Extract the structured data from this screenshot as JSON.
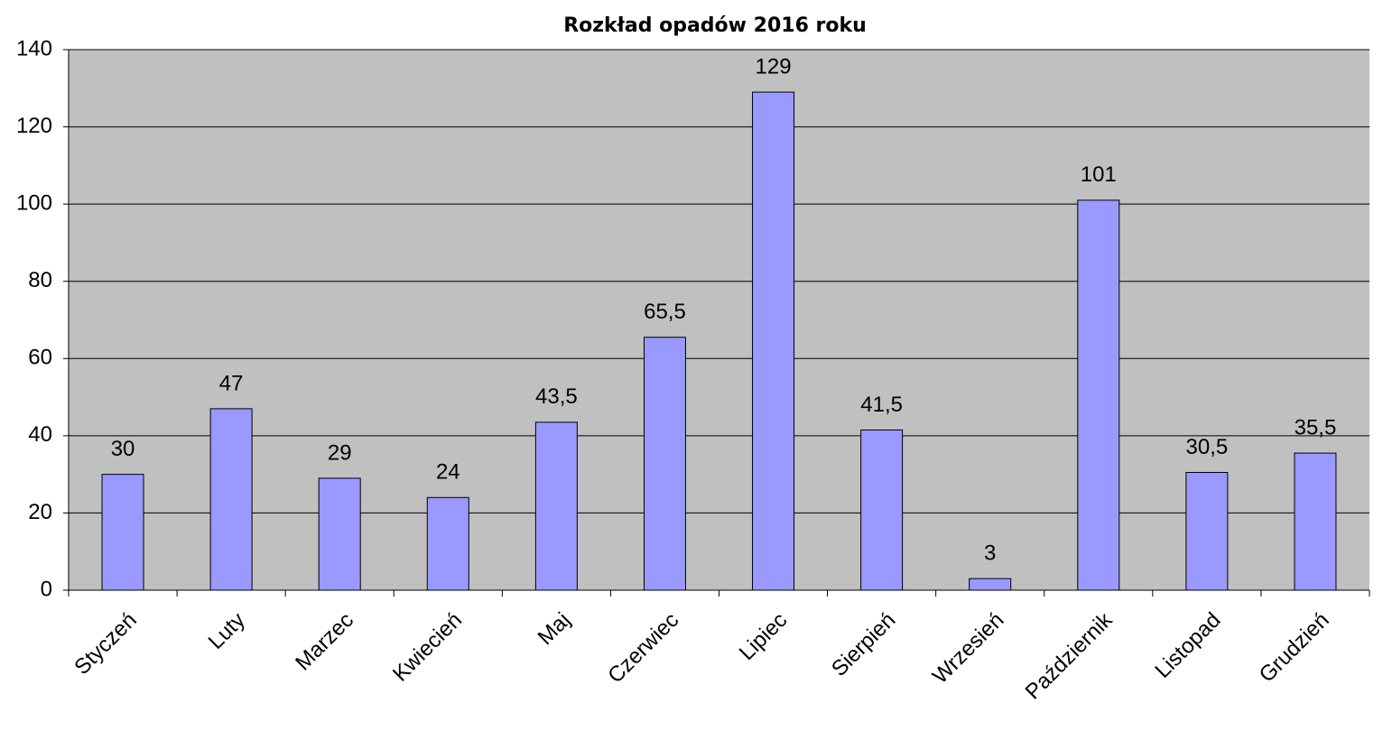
{
  "chart_data": {
    "type": "bar",
    "title": "Rozkład opadów 2016 roku",
    "categories": [
      "Styczeń",
      "Luty",
      "Marzec",
      "Kwiecień",
      "Maj",
      "Czerwiec",
      "Lipiec",
      "Sierpień",
      "Wrzesień",
      "Październik",
      "Listopad",
      "Grudzień"
    ],
    "values": [
      30,
      47,
      29,
      24,
      43.5,
      65.5,
      129,
      41.5,
      3,
      101,
      30.5,
      35.5
    ],
    "value_labels": [
      "30",
      "47",
      "29",
      "24",
      "43,5",
      "65,5",
      "129",
      "41,5",
      "3",
      "101",
      "30,5",
      "35,5"
    ],
    "color": "#9999ff",
    "ylim": [
      0,
      140
    ],
    "yticks": [
      0,
      20,
      40,
      60,
      80,
      100,
      120,
      140
    ],
    "grid": true
  }
}
